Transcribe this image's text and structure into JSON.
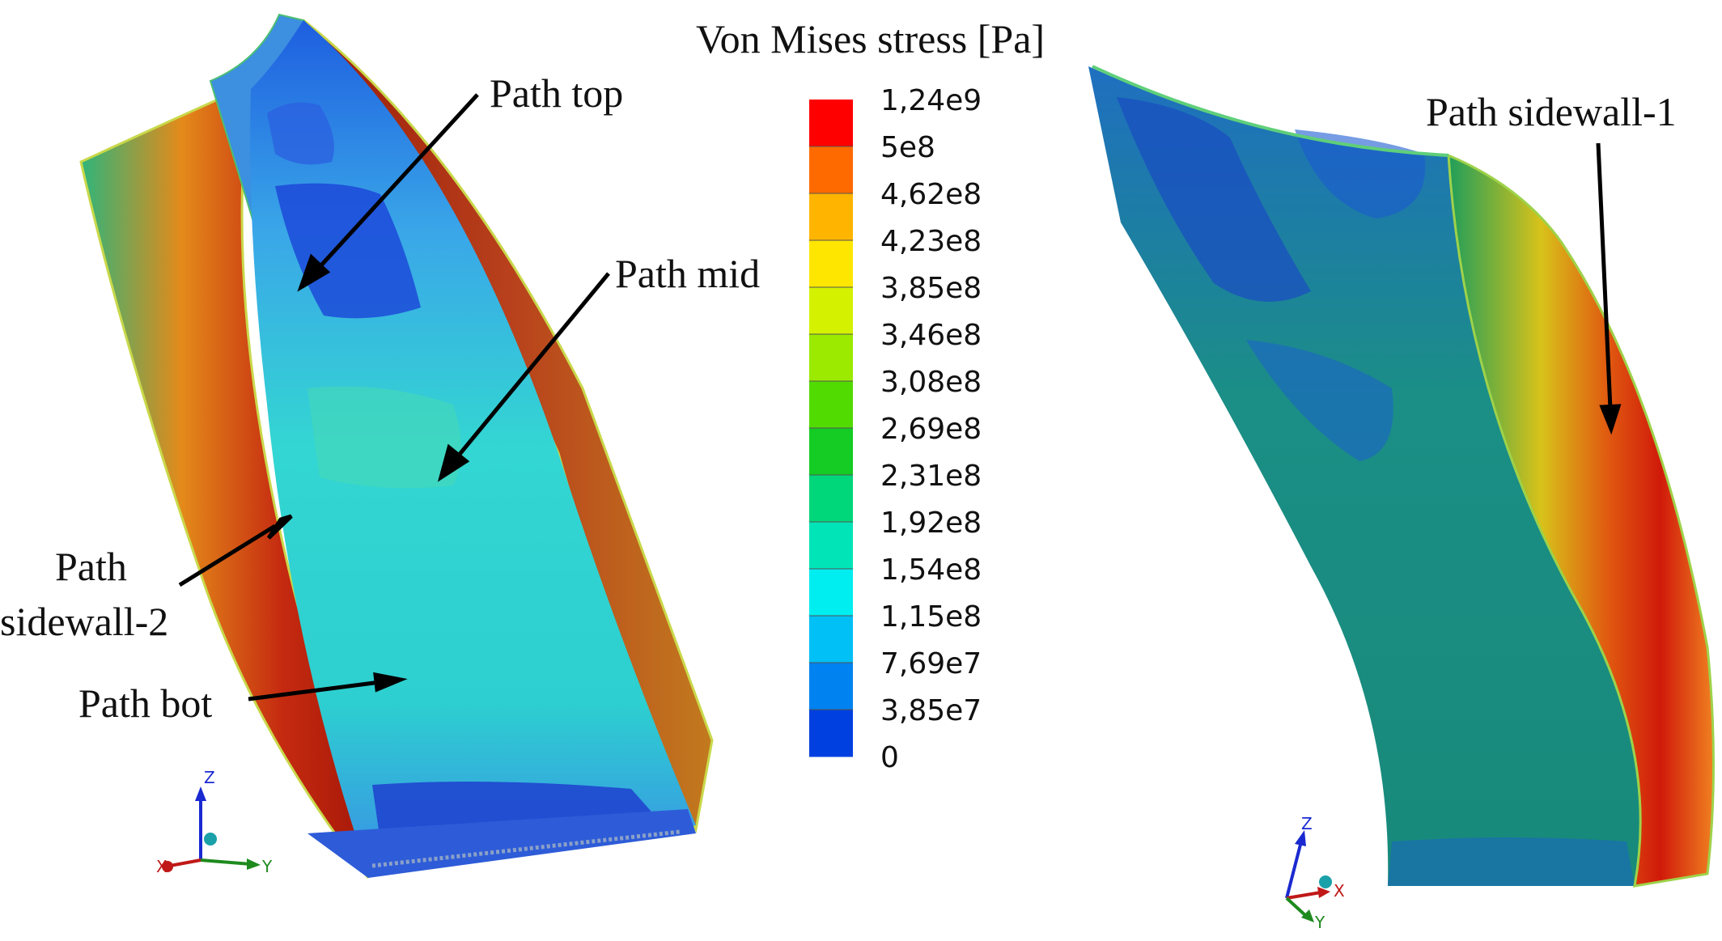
{
  "legend": {
    "title": "Von Mises stress [Pa]",
    "ticks": [
      "1,24e9",
      "5e8",
      "4,62e8",
      "4,23e8",
      "3,85e8",
      "3,46e8",
      "3,08e8",
      "2,69e8",
      "2,31e8",
      "1,92e8",
      "1,54e8",
      "1,15e8",
      "7,69e7",
      "3,85e7",
      "0"
    ],
    "colors": [
      "#ff0000",
      "#ff6a00",
      "#ffb400",
      "#ffe600",
      "#d4f200",
      "#9bea00",
      "#52db00",
      "#14cc24",
      "#00d67a",
      "#00e4b8",
      "#00eef0",
      "#00c0f5",
      "#0082f0",
      "#0040e0",
      "#0000cc"
    ]
  },
  "annotations": {
    "path_top": "Path top",
    "path_mid": "Path mid",
    "path_sidewall_2_line1": "Path",
    "path_sidewall_2_line2": "sidewall-2",
    "path_bot": "Path bot",
    "path_sidewall_1": "Path sidewall-1"
  },
  "triad_left": {
    "z": "Z",
    "x": "X",
    "y": "Y"
  },
  "triad_right": {
    "z": "Z",
    "x": "X",
    "y": "Y"
  }
}
